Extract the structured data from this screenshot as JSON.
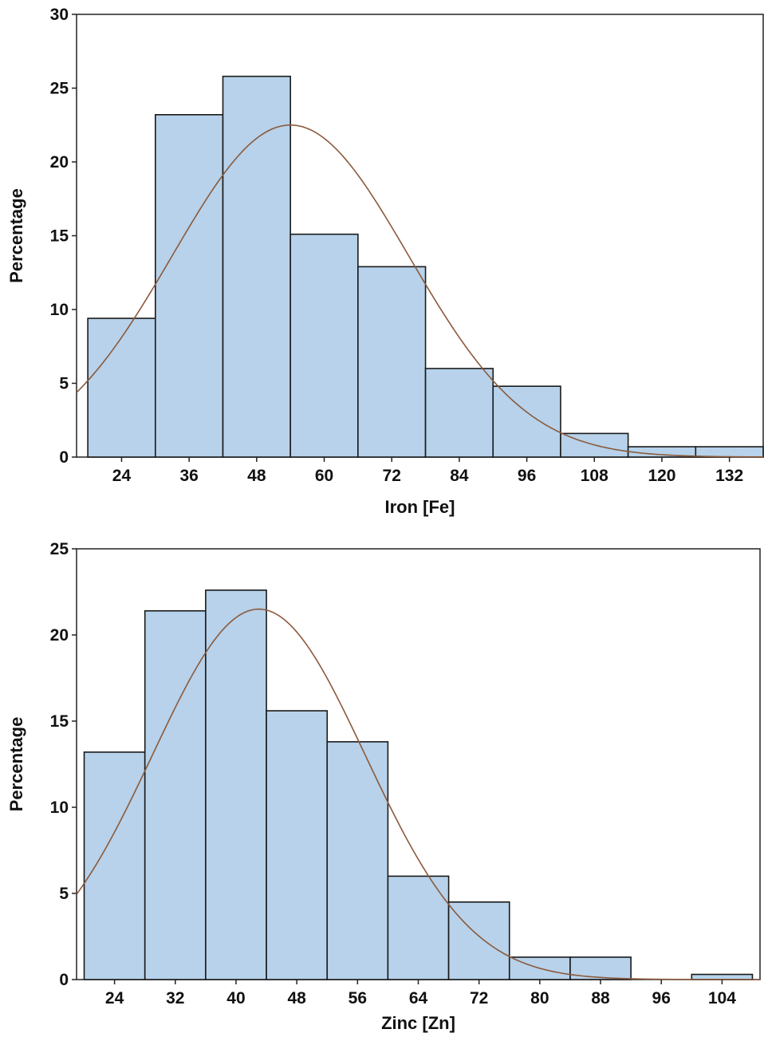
{
  "colors": {
    "bar_fill": "#b7d2ea",
    "bar_stroke": "#1a1a1a",
    "curve": "#8b5a3c",
    "axis": "#222222"
  },
  "chart_data": [
    {
      "type": "bar",
      "xlabel": "Iron [Fe]",
      "ylabel": "Percentage",
      "ylim": [
        0,
        30
      ],
      "xlim": [
        16,
        138
      ],
      "yticks": [
        0,
        5,
        10,
        15,
        20,
        25,
        30
      ],
      "xticks": [
        24,
        36,
        48,
        60,
        72,
        84,
        96,
        108,
        120,
        132
      ],
      "bin_width": 12,
      "bars": [
        {
          "center": 24,
          "value": 9.4
        },
        {
          "center": 36,
          "value": 23.2
        },
        {
          "center": 48,
          "value": 25.8
        },
        {
          "center": 60,
          "value": 15.1
        },
        {
          "center": 72,
          "value": 12.9
        },
        {
          "center": 84,
          "value": 6.0
        },
        {
          "center": 96,
          "value": 4.8
        },
        {
          "center": 108,
          "value": 1.6
        },
        {
          "center": 120,
          "value": 0.7
        },
        {
          "center": 132,
          "value": 0.7
        }
      ],
      "fit_curve": {
        "type": "normal",
        "mean": 54,
        "sd": 21,
        "peak": 22.5
      },
      "grid": false
    },
    {
      "type": "bar",
      "xlabel": "Zinc [Zn]",
      "ylabel": "Percentage",
      "ylim": [
        0,
        25
      ],
      "xlim": [
        19,
        109
      ],
      "yticks": [
        0,
        5,
        10,
        15,
        20,
        25
      ],
      "xticks": [
        24,
        32,
        40,
        48,
        56,
        64,
        72,
        80,
        88,
        96,
        104
      ],
      "bin_width": 8,
      "bars": [
        {
          "center": 24,
          "value": 13.2
        },
        {
          "center": 32,
          "value": 21.4
        },
        {
          "center": 40,
          "value": 22.6
        },
        {
          "center": 48,
          "value": 15.6
        },
        {
          "center": 56,
          "value": 13.8
        },
        {
          "center": 64,
          "value": 6.0
        },
        {
          "center": 72,
          "value": 4.5
        },
        {
          "center": 80,
          "value": 1.3
        },
        {
          "center": 88,
          "value": 1.3
        },
        {
          "center": 104,
          "value": 0.3
        }
      ],
      "fit_curve": {
        "type": "normal",
        "mean": 43,
        "sd": 14,
        "peak": 21.5
      },
      "grid": false
    }
  ]
}
